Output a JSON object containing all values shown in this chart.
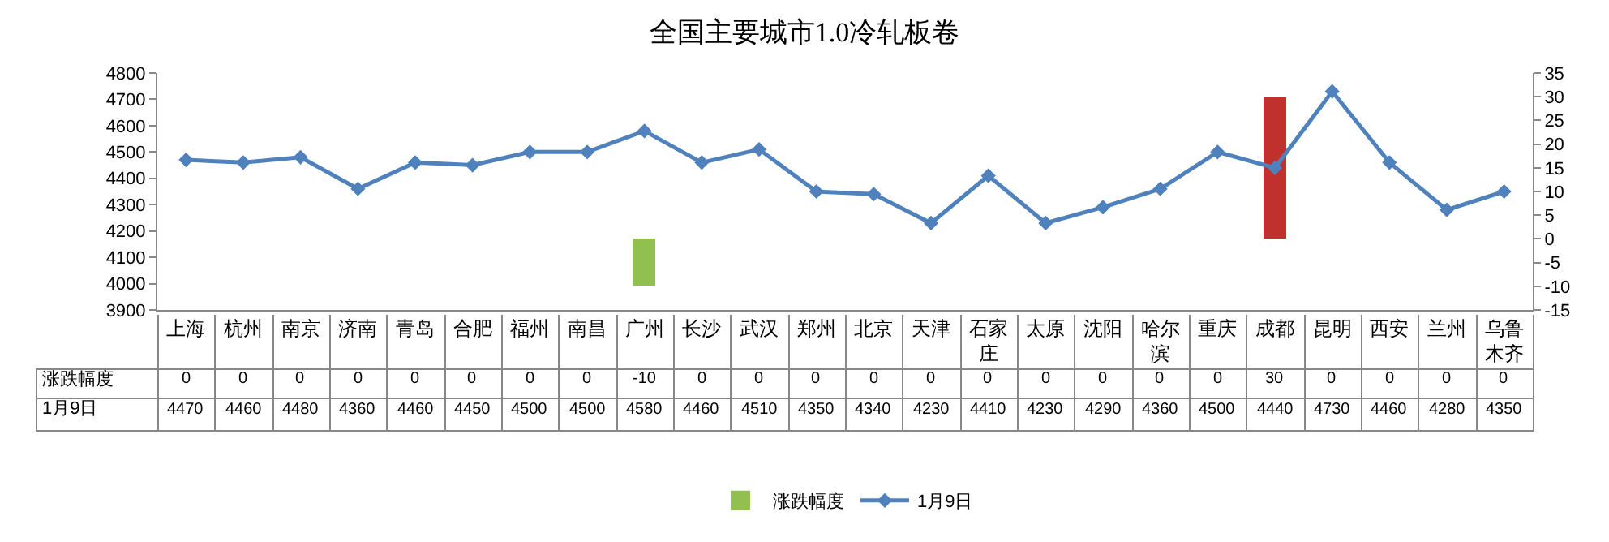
{
  "chart_data": {
    "type": "bar",
    "title": "全国主要城市1.0冷轧板卷",
    "categories": [
      "上海",
      "杭州",
      "南京",
      "济南",
      "青岛",
      "合肥",
      "福州",
      "南昌",
      "广州",
      "长沙",
      "武汉",
      "郑州",
      "北京",
      "天津",
      "石家庄",
      "太原",
      "沈阳",
      "哈尔滨",
      "重庆",
      "成都",
      "昆明",
      "西安",
      "兰州",
      "乌鲁木齐"
    ],
    "series": [
      {
        "name": "涨跌幅度",
        "axis": "y2",
        "color": "#92c050",
        "colors": [
          null,
          null,
          null,
          null,
          null,
          null,
          null,
          null,
          null,
          null,
          null,
          null,
          null,
          null,
          null,
          null,
          null,
          null,
          null,
          "#c0312e",
          null,
          null,
          null,
          null
        ],
        "values": [
          0,
          0,
          0,
          0,
          0,
          0,
          0,
          0,
          -10,
          0,
          0,
          0,
          0,
          0,
          0,
          0,
          0,
          0,
          0,
          30,
          0,
          0,
          0,
          0
        ]
      },
      {
        "name": "1月9日",
        "type": "line",
        "color": "#4f81bd",
        "values": [
          4470,
          4460,
          4480,
          4360,
          4460,
          4450,
          4500,
          4500,
          4580,
          4460,
          4510,
          4350,
          4340,
          4230,
          4410,
          4230,
          4290,
          4360,
          4500,
          4440,
          4730,
          4460,
          4280,
          4350
        ]
      }
    ],
    "ylim": [
      3900,
      4800
    ],
    "yticks": [
      3900,
      4000,
      4100,
      4200,
      4300,
      4400,
      4500,
      4600,
      4700,
      4800
    ],
    "y2lim": [
      -15,
      35
    ],
    "y2ticks": [
      -15,
      -10,
      -5,
      0,
      5,
      10,
      15,
      20,
      25,
      30,
      35
    ],
    "marker": "diamond",
    "line_style": "solid",
    "grid": false,
    "legend": "bottom",
    "data_labels": true
  }
}
